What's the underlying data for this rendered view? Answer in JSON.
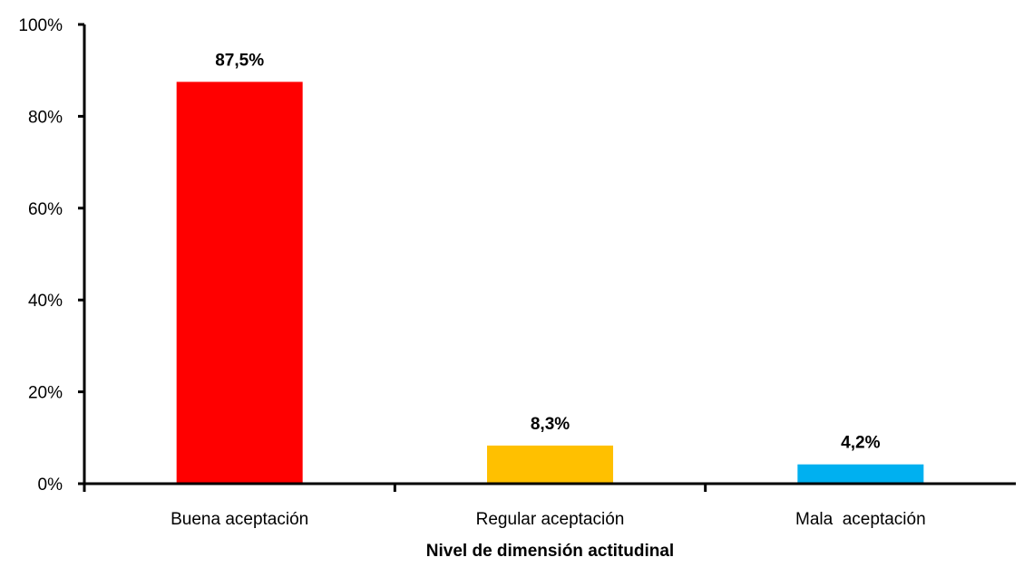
{
  "chart_data": {
    "type": "bar",
    "title": "",
    "xlabel": "Nivel de dimensión actitudinal",
    "ylabel": "",
    "categories": [
      "Buena aceptación",
      "Regular aceptación",
      "Mala  aceptación"
    ],
    "values": [
      87.5,
      8.3,
      4.2
    ],
    "data_labels": [
      "87,5%",
      "8,3%",
      "4,2%"
    ],
    "colors": [
      "#ff0000",
      "#ffc000",
      "#00b0f0"
    ],
    "ylim": [
      0,
      100
    ],
    "yticks": [
      0,
      20,
      40,
      60,
      80,
      100
    ],
    "ytick_labels": [
      "0%",
      "20%",
      "40%",
      "60%",
      "80%",
      "100%"
    ],
    "grid": false,
    "legend": "none"
  }
}
